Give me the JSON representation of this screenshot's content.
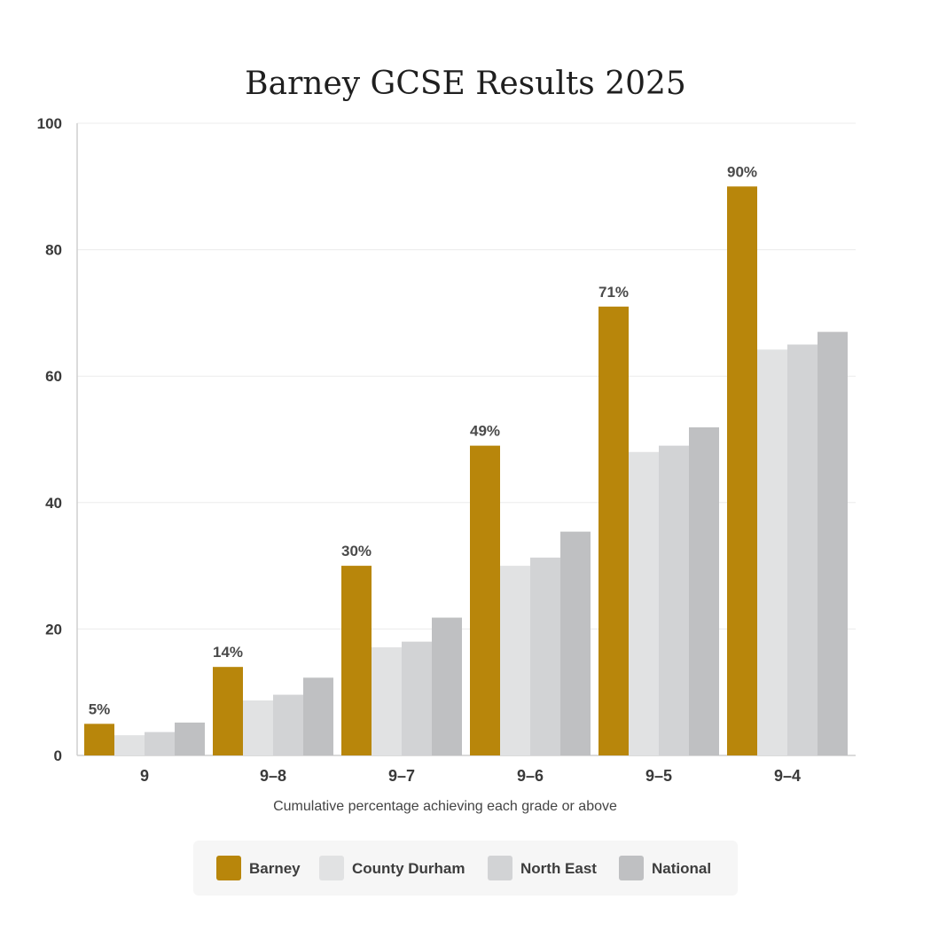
{
  "chart_data": {
    "type": "bar",
    "title": "Barney GCSE Results 2025",
    "xlabel": "Cumulative percentage achieving each grade or above",
    "ylabel": "",
    "ylim": [
      0,
      100
    ],
    "yticks": [
      0,
      20,
      40,
      60,
      80,
      100
    ],
    "grid": true,
    "legend_position": "bottom",
    "categories": [
      "9",
      "9–8",
      "9–7",
      "9–6",
      "9–5",
      "9–4"
    ],
    "series": [
      {
        "name": "Barney",
        "color": "#b8860b",
        "values": [
          5,
          14,
          30,
          49,
          71,
          90
        ],
        "data_labels": [
          "5%",
          "14%",
          "30%",
          "49%",
          "71%",
          "90%"
        ]
      },
      {
        "name": "County Durham",
        "color": "#e1e2e3",
        "values": [
          3.2,
          8.7,
          17.1,
          30,
          48,
          64.2
        ]
      },
      {
        "name": "North East",
        "color": "#d2d3d5",
        "values": [
          3.7,
          9.6,
          18,
          31.3,
          49,
          65
        ]
      },
      {
        "name": "National",
        "color": "#bfc0c2",
        "values": [
          5.2,
          12.3,
          21.8,
          35.4,
          51.9,
          67
        ]
      }
    ]
  }
}
